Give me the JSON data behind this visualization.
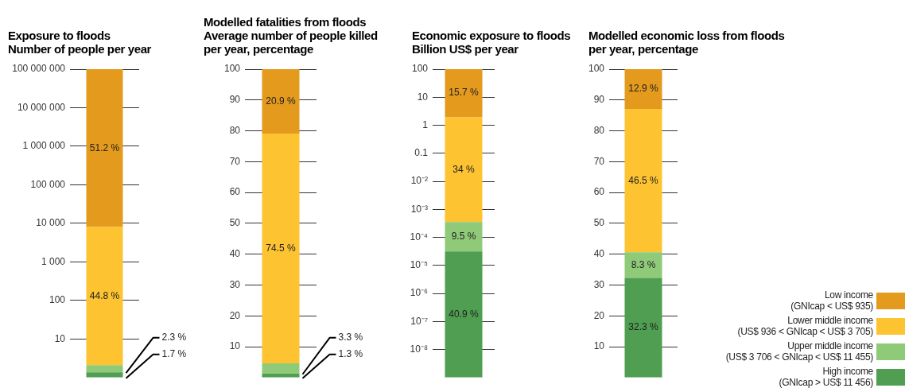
{
  "chart_data": [
    {
      "type": "bar",
      "title": "Exposure to floods",
      "subtitle": "Number of people per year",
      "categories": [
        null
      ],
      "stacked": true,
      "log": true,
      "grid": "y",
      "tick_labels": "y",
      "ylim": [
        1,
        100000000
      ],
      "yticks": [
        {
          "value": 10,
          "label": "10"
        },
        {
          "value": 100,
          "label": "100"
        },
        {
          "value": 1000,
          "label": "1 000"
        },
        {
          "value": 10000,
          "label": "10 000"
        },
        {
          "value": 100000,
          "label": "100 000"
        },
        {
          "value": 1000000,
          "label": "1 000 000"
        },
        {
          "value": 10000000,
          "label": "10 000 000"
        },
        {
          "value": 100000000,
          "label": "100 000 000"
        }
      ],
      "y2lim": [
        0,
        100
      ],
      "series": [
        {
          "color": "#4f9e51",
          "axis": "y2",
          "values": [
            1.7
          ],
          "value_labels": [
            "1.7 %"
          ]
        },
        {
          "color": "#8fca79",
          "axis": "y2",
          "values": [
            2.3
          ],
          "value_labels": [
            "2.3 %"
          ]
        },
        {
          "color": "#fdc331",
          "axis": "y2",
          "values": [
            44.8
          ],
          "value_labels": [
            "44.8 %"
          ]
        },
        {
          "color": "#e39a1d",
          "axis": "y2",
          "values": [
            51.2
          ],
          "value_labels": [
            "51.2 %"
          ]
        }
      ]
    },
    {
      "type": "bar",
      "title": "Modelled fatalities from floods",
      "subtitle": "Average number of people killed per year, percentage",
      "categories": [
        null
      ],
      "stacked": true,
      "grid": "y",
      "ylim": [
        0,
        100
      ],
      "yticks": [
        10,
        20,
        30,
        40,
        50,
        60,
        70,
        80,
        90,
        100
      ],
      "series": [
        {
          "color": "#4f9e51",
          "values": [
            1.3
          ],
          "value_labels": [
            "1.3 %"
          ]
        },
        {
          "color": "#8fca79",
          "values": [
            3.3
          ],
          "value_labels": [
            "3.3 %"
          ]
        },
        {
          "color": "#fdc331",
          "values": [
            74.5
          ],
          "value_labels": [
            "74.5 %"
          ]
        },
        {
          "color": "#e39a1d",
          "values": [
            20.9
          ],
          "value_labels": [
            "20.9 %"
          ]
        }
      ]
    },
    {
      "type": "bar",
      "title": "Economic exposure to floods",
      "subtitle": "Billion US$ per year",
      "categories": [
        null
      ],
      "stacked": true,
      "log": true,
      "grid": "y",
      "tick_labels": "y",
      "ylim": [
        1e-09,
        100
      ],
      "yticks": [
        {
          "value": 1e-08,
          "label": "10⁻⁸"
        },
        {
          "value": 1e-07,
          "label": "10⁻⁷"
        },
        {
          "value": 1e-06,
          "label": "10⁻⁶"
        },
        {
          "value": 1e-05,
          "label": "10⁻⁵"
        },
        {
          "value": 0.0001,
          "label": "10⁻⁴"
        },
        {
          "value": 0.001,
          "label": "10⁻³"
        },
        {
          "value": 0.01,
          "label": "10⁻²"
        },
        {
          "value": 0.1,
          "label": "0.1"
        },
        {
          "value": 1,
          "label": "1"
        },
        {
          "value": 10,
          "label": "10"
        },
        {
          "value": 100,
          "label": "100"
        }
      ],
      "y2lim": [
        0,
        100
      ],
      "series": [
        {
          "color": "#4f9e51",
          "axis": "y2",
          "values": [
            40.9
          ],
          "value_labels": [
            "40.9 %"
          ]
        },
        {
          "color": "#8fca79",
          "axis": "y2",
          "values": [
            9.5
          ],
          "value_labels": [
            "9.5 %"
          ]
        },
        {
          "color": "#fdc331",
          "axis": "y2",
          "values": [
            34
          ],
          "value_labels": [
            "34 %"
          ]
        },
        {
          "color": "#e39a1d",
          "axis": "y2",
          "values": [
            15.7
          ],
          "value_labels": [
            "15.7 %"
          ]
        }
      ]
    },
    {
      "type": "bar",
      "title": "Modelled economic loss from floods",
      "subtitle": "per year, percentage",
      "categories": [
        null
      ],
      "stacked": true,
      "grid": "y",
      "ylim": [
        0,
        100
      ],
      "yticks": [
        10,
        20,
        30,
        40,
        50,
        60,
        70,
        80,
        90,
        100
      ],
      "legend": "bottom right",
      "series": [
        {
          "name": "High income\n(GNIcap > US$ 11 456)",
          "color": "#4f9e51",
          "values": [
            32.3
          ],
          "value_labels": [
            "32.3 %"
          ]
        },
        {
          "name": "Upper middle income\n(US$ 3 706 < GNIcap < US$ 11 455)",
          "color": "#8fca79",
          "values": [
            8.3
          ],
          "value_labels": [
            "8.3 %"
          ]
        },
        {
          "name": "Lower middle income\n(US$ 936 < GNIcap < US$ 3 705)",
          "color": "#fdc331",
          "values": [
            46.5
          ],
          "value_labels": [
            "46.5 %"
          ]
        },
        {
          "name": "Low income\n(GNIcap < US$ 935)",
          "color": "#e39a1d",
          "values": [
            12.9
          ],
          "value_labels": [
            "12.9 %"
          ]
        }
      ]
    }
  ]
}
